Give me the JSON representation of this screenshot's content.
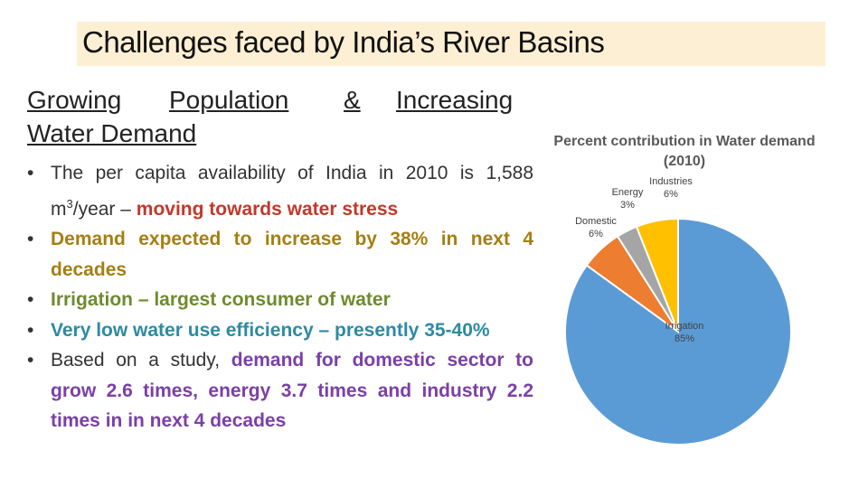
{
  "title": "Challenges faced by India’s River Basins",
  "heading": {
    "w1": "Growing ",
    "w2": "Population ",
    "w3": "& ",
    "w4": "Increasing",
    "line2": "Water Demand"
  },
  "bullets": {
    "b1": {
      "prefix": "The per capita availability of India in 2010 is 1,588 m",
      "sup": "3",
      "mid": "/year – ",
      "emph": "moving towards water stress"
    },
    "b2": "Demand expected to increase by 38% in next 4 decades",
    "b3": "Irrigation – largest consumer of water",
    "b4": "Very low water use efficiency – presently 35-40%",
    "b5": {
      "prefix": "Based on a study, ",
      "emph": "demand for domestic sector to grow 2.6 times, energy 3.7 times and industry 2.2 times in in next 4 decades"
    }
  },
  "chart_data": {
    "type": "pie",
    "title": "Percent contribution in Water demand (2010)",
    "slices": [
      {
        "label": "Irrigation",
        "value": 85,
        "display": "85%",
        "color": "#5b9bd5"
      },
      {
        "label": "Domestic",
        "value": 6,
        "display": "6%",
        "color": "#ed7d31"
      },
      {
        "label": "Energy",
        "value": 3,
        "display": "3%",
        "color": "#a5a5a5"
      },
      {
        "label": "Industries",
        "value": 6,
        "display": "6%",
        "color": "#ffc000"
      }
    ]
  }
}
